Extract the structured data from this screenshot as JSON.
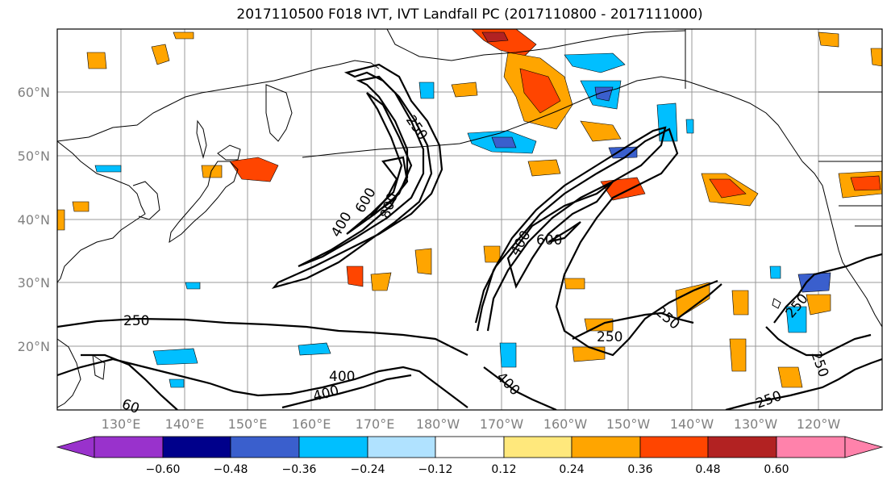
{
  "title": "2017110500 F018 IVT, IVT Landfall PC (2017110800 - 2017111000)",
  "longitude_labels": [
    "130°E",
    "140°E",
    "150°E",
    "160°E",
    "170°E",
    "180°W",
    "170°W",
    "160°W",
    "150°W",
    "140°W",
    "130°W",
    "120°W"
  ],
  "latitude_labels": [
    "60°N",
    "50°N",
    "40°N",
    "30°N",
    "20°N"
  ],
  "colorbar": {
    "ticks": [
      "−0.60",
      "−0.48",
      "−0.36",
      "−0.24",
      "−0.12",
      "0.12",
      "0.24",
      "0.36",
      "0.48",
      "0.60"
    ],
    "colors": [
      "#9932cc",
      "#00008b",
      "#3a5fcd",
      "#00bfff",
      "#b0e2ff",
      "#ffffff",
      "#ffe87c",
      "#ffa500",
      "#ff4500",
      "#b22222",
      "#ff82ab"
    ]
  },
  "contour_labels": [
    "250",
    "400",
    "600",
    "800",
    "400",
    "600",
    "250",
    "400",
    "400",
    "250",
    "250",
    "250",
    "400",
    "60",
    "250",
    "250"
  ],
  "colors": {
    "land_outline": "#000000",
    "grid": "#999999",
    "ivt_contour": "#000000"
  }
}
